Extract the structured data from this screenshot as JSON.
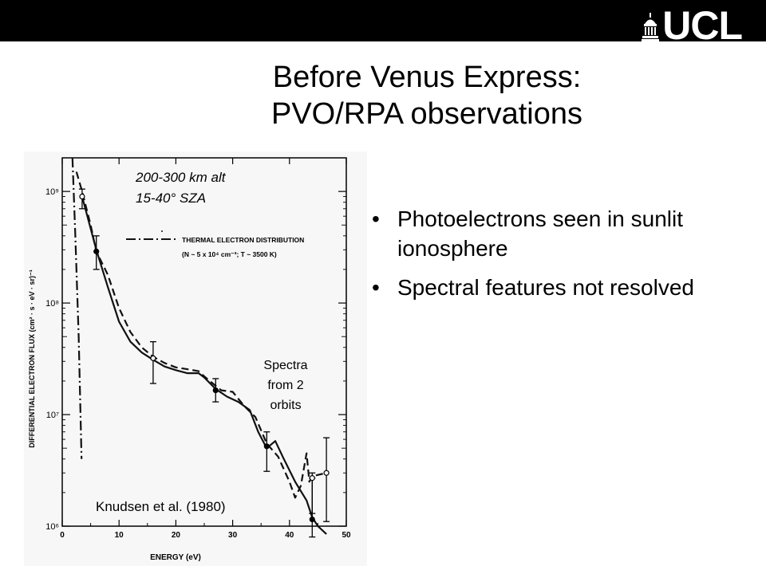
{
  "logo": {
    "text": "UCL",
    "icon": "ucl-portico-dome-icon"
  },
  "slide": {
    "title_line1": "Before Venus Express:",
    "title_line2": "PVO/RPA observations",
    "bullets": [
      "Photoelectrons seen in sunlit ionosphere",
      "Spectral features not resolved"
    ]
  },
  "chart_data": {
    "type": "line",
    "xlabel": "ENERGY (eV)",
    "ylabel": "DIFFERENTIAL ELECTRON FLUX (cm² · s · eV · sr)⁻¹",
    "xlim": [
      0,
      50
    ],
    "ylim": [
      1000000,
      2000000000
    ],
    "yscale": "log",
    "x_ticks": [
      0,
      10,
      20,
      30,
      40,
      50
    ],
    "y_ticks": [
      {
        "value": 1000000,
        "label": "10⁶"
      },
      {
        "value": 10000000,
        "label": "10⁷"
      },
      {
        "value": 100000000,
        "label": "10⁸"
      },
      {
        "value": 1000000000,
        "label": "10⁹"
      }
    ],
    "annotations": {
      "altitude": "200-300 km alt",
      "sza": "15-40° SZA",
      "spectra_line1": "Spectra",
      "spectra_line2": "from 2",
      "spectra_line3": "orbits",
      "citation": "Knudsen et al. (1980)"
    },
    "legend": {
      "label": "THERMAL ELECTRON DISTRIBUTION",
      "params": "(N ~ 5 x 10⁴ cm⁻³; T ~ 3500 K)",
      "placement": "top-right"
    },
    "series": [
      {
        "style": "solid",
        "x": [
          3.5,
          6,
          8,
          10,
          12,
          14,
          16,
          18,
          20,
          22,
          24,
          25,
          27,
          29,
          31,
          33,
          34.5,
          36,
          37.5,
          39,
          41,
          43,
          44,
          45,
          46.5
        ],
        "y": [
          900000000,
          300000000,
          140000000,
          68000000,
          45000000,
          36000000,
          31000000,
          27000000,
          25000000,
          23500000,
          23500000,
          21500000,
          17000000,
          14500000,
          13000000,
          11000000,
          7000000,
          5000000,
          5800000,
          4000000,
          2500000,
          1700000,
          1200000,
          1000000,
          850000
        ]
      },
      {
        "style": "dashed",
        "x": [
          2.5,
          3.5,
          5,
          6,
          8,
          10,
          12,
          14,
          16,
          18,
          20,
          22,
          24,
          25,
          26.5,
          28,
          30,
          32,
          34,
          36,
          38,
          40,
          41,
          42,
          43,
          43.5,
          44,
          46.5
        ],
        "y": [
          1500000000,
          1000000000,
          500000000,
          290000000,
          180000000,
          90000000,
          55000000,
          40000000,
          33000000,
          29000000,
          26500000,
          25500000,
          24500000,
          22000000,
          19000000,
          16500000,
          16000000,
          12000000,
          9500000,
          5500000,
          4200000,
          2500000,
          1800000,
          2300000,
          4500000,
          2500000,
          2800000,
          3000000
        ]
      },
      {
        "style": "dash-dot",
        "x": [
          1.8,
          2.3,
          2.9,
          3.4
        ],
        "y": [
          2000000000,
          400000000,
          50000000,
          4000000
        ]
      }
    ],
    "error_bars": [
      {
        "x": 3.5,
        "y": 900000000,
        "low": 700000000,
        "high": 1050000000,
        "marker": "open"
      },
      {
        "x": 6,
        "y": 290000000,
        "low": 200000000,
        "high": 400000000,
        "marker": "filled"
      },
      {
        "x": 16,
        "y": 32000000,
        "low": 19000000,
        "high": 45000000,
        "marker": "open"
      },
      {
        "x": 27,
        "y": 16500000,
        "low": 13000000,
        "high": 21000000,
        "marker": "filled"
      },
      {
        "x": 36,
        "y": 5200000,
        "low": 3100000,
        "high": 7000000,
        "marker": "filled"
      },
      {
        "x": 44,
        "y": 1150000,
        "low": 750000,
        "high": 2700000,
        "marker": "filled"
      },
      {
        "x": 44,
        "y": 2700000,
        "low": 1300000,
        "high": 3000000,
        "marker": "open"
      },
      {
        "x": 46.5,
        "y": 3000000,
        "low": 1100000,
        "high": 6200000,
        "marker": "open"
      }
    ]
  }
}
